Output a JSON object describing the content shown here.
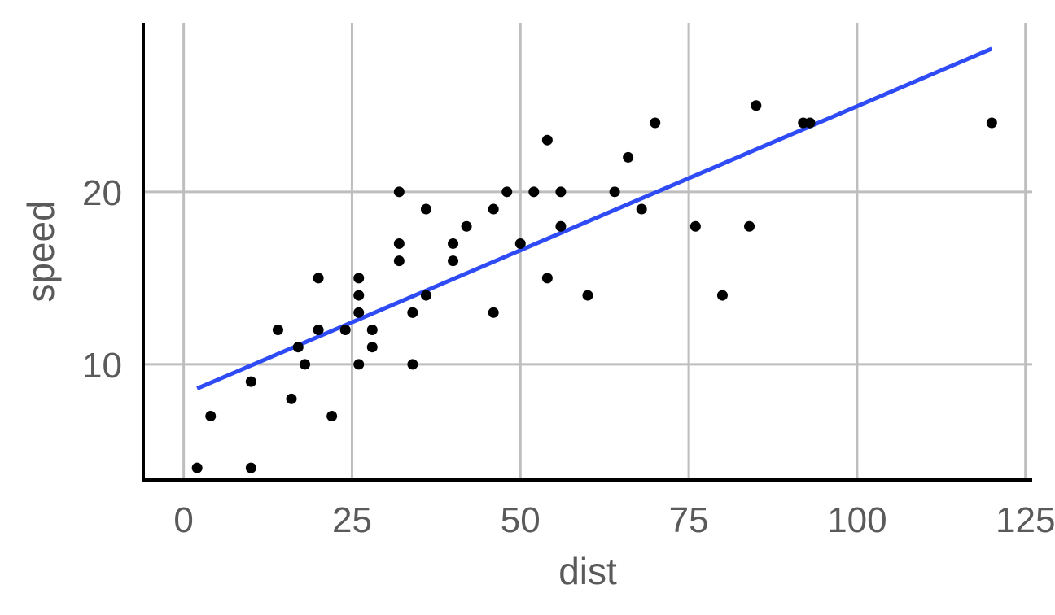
{
  "chart_data": {
    "type": "scatter",
    "title": "",
    "xlabel": "dist",
    "ylabel": "speed",
    "xlim": [
      -6,
      126
    ],
    "ylim": [
      3.3,
      29.8
    ],
    "xticks": [
      0,
      25,
      50,
      75,
      100,
      125
    ],
    "yticks": [
      10,
      20
    ],
    "grid": true,
    "legend": "none",
    "colors": {
      "points": "#000000",
      "fit": "#2e4bf5",
      "grid": "#bebebe",
      "text": "#5a5a5a"
    },
    "points": [
      {
        "x": 2,
        "y": 4
      },
      {
        "x": 10,
        "y": 4
      },
      {
        "x": 4,
        "y": 7
      },
      {
        "x": 22,
        "y": 7
      },
      {
        "x": 16,
        "y": 8
      },
      {
        "x": 10,
        "y": 9
      },
      {
        "x": 18,
        "y": 10
      },
      {
        "x": 26,
        "y": 10
      },
      {
        "x": 34,
        "y": 10
      },
      {
        "x": 17,
        "y": 11
      },
      {
        "x": 28,
        "y": 11
      },
      {
        "x": 14,
        "y": 12
      },
      {
        "x": 20,
        "y": 12
      },
      {
        "x": 24,
        "y": 12
      },
      {
        "x": 28,
        "y": 12
      },
      {
        "x": 26,
        "y": 13
      },
      {
        "x": 34,
        "y": 13
      },
      {
        "x": 34,
        "y": 13
      },
      {
        "x": 46,
        "y": 13
      },
      {
        "x": 26,
        "y": 14
      },
      {
        "x": 36,
        "y": 14
      },
      {
        "x": 60,
        "y": 14
      },
      {
        "x": 80,
        "y": 14
      },
      {
        "x": 20,
        "y": 15
      },
      {
        "x": 26,
        "y": 15
      },
      {
        "x": 54,
        "y": 15
      },
      {
        "x": 32,
        "y": 16
      },
      {
        "x": 40,
        "y": 16
      },
      {
        "x": 32,
        "y": 17
      },
      {
        "x": 40,
        "y": 17
      },
      {
        "x": 50,
        "y": 17
      },
      {
        "x": 42,
        "y": 18
      },
      {
        "x": 56,
        "y": 18
      },
      {
        "x": 76,
        "y": 18
      },
      {
        "x": 84,
        "y": 18
      },
      {
        "x": 36,
        "y": 19
      },
      {
        "x": 46,
        "y": 19
      },
      {
        "x": 68,
        "y": 19
      },
      {
        "x": 32,
        "y": 20
      },
      {
        "x": 48,
        "y": 20
      },
      {
        "x": 52,
        "y": 20
      },
      {
        "x": 56,
        "y": 20
      },
      {
        "x": 64,
        "y": 20
      },
      {
        "x": 66,
        "y": 22
      },
      {
        "x": 54,
        "y": 23
      },
      {
        "x": 70,
        "y": 24
      },
      {
        "x": 92,
        "y": 24
      },
      {
        "x": 93,
        "y": 24
      },
      {
        "x": 120,
        "y": 24
      },
      {
        "x": 85,
        "y": 25
      }
    ],
    "fit_line": {
      "x": [
        2,
        120
      ],
      "y": [
        8.6,
        28.3
      ]
    }
  }
}
